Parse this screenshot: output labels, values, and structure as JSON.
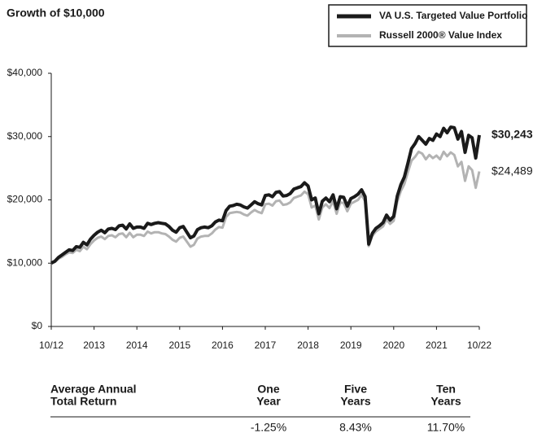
{
  "chart_data": {
    "type": "line",
    "title": "Growth of $10,000",
    "categories": [
      "10/12",
      null,
      null,
      null,
      null,
      null,
      null,
      null,
      null,
      null,
      null,
      null,
      "2013",
      null,
      null,
      null,
      null,
      null,
      null,
      null,
      null,
      null,
      null,
      null,
      "2014",
      null,
      null,
      null,
      null,
      null,
      null,
      null,
      null,
      null,
      null,
      null,
      "2015",
      null,
      null,
      null,
      null,
      null,
      null,
      null,
      null,
      null,
      null,
      null,
      "2016",
      null,
      null,
      null,
      null,
      null,
      null,
      null,
      null,
      null,
      null,
      null,
      "2017",
      null,
      null,
      null,
      null,
      null,
      null,
      null,
      null,
      null,
      null,
      null,
      "2018",
      null,
      null,
      null,
      null,
      null,
      null,
      null,
      null,
      null,
      null,
      null,
      "2019",
      null,
      null,
      null,
      null,
      null,
      null,
      null,
      null,
      null,
      null,
      null,
      "2020",
      null,
      null,
      null,
      null,
      null,
      null,
      null,
      null,
      null,
      null,
      null,
      "2021",
      null,
      null,
      null,
      null,
      null,
      null,
      null,
      null,
      null,
      null,
      null,
      "10/22"
    ],
    "series": [
      {
        "name": "VA U.S. Targeted Value Portfolio",
        "color": "#1a1a1a",
        "values": [
          10000,
          10300,
          10900,
          11300,
          11700,
          12100,
          12000,
          12600,
          12500,
          13300,
          12900,
          13800,
          14400,
          14900,
          15200,
          14800,
          15400,
          15500,
          15300,
          15900,
          16000,
          15400,
          16200,
          15500,
          15700,
          15700,
          15500,
          16300,
          16100,
          16300,
          16400,
          16300,
          16200,
          15800,
          15200,
          14900,
          15600,
          15800,
          14900,
          14000,
          14300,
          15300,
          15600,
          15700,
          15600,
          15900,
          16500,
          16800,
          16700,
          18300,
          19000,
          19100,
          19300,
          19200,
          18900,
          18700,
          19200,
          19700,
          19400,
          19200,
          20700,
          20800,
          20500,
          21200,
          21300,
          20600,
          20700,
          21000,
          21700,
          21900,
          22100,
          22700,
          22200,
          20000,
          20300,
          17800,
          19800,
          20300,
          19700,
          20800,
          18600,
          20500,
          20400,
          19000,
          20200,
          20500,
          20900,
          21600,
          20500,
          13000,
          14700,
          15500,
          15900,
          16400,
          17600,
          16800,
          17400,
          20600,
          22400,
          23600,
          25800,
          28100,
          28900,
          30000,
          29400,
          28800,
          29700,
          29400,
          30400,
          30000,
          31300,
          30600,
          31500,
          31400,
          29600,
          30800,
          27500,
          30200,
          29800,
          26600,
          30243
        ]
      },
      {
        "name": "Russell 2000® Value Index",
        "color": "#b3b3b3",
        "values": [
          10000,
          10200,
          10700,
          11000,
          11400,
          11700,
          11600,
          12100,
          11900,
          12600,
          12200,
          13000,
          13600,
          14000,
          14200,
          13800,
          14300,
          14400,
          14100,
          14600,
          14700,
          14100,
          14800,
          14100,
          14500,
          14500,
          14300,
          15000,
          14700,
          14900,
          14900,
          14700,
          14600,
          14200,
          13700,
          13400,
          14000,
          14200,
          13400,
          12600,
          12900,
          13900,
          14200,
          14300,
          14300,
          14700,
          15300,
          15700,
          15600,
          17300,
          17900,
          18000,
          18100,
          18000,
          17700,
          17500,
          18000,
          18400,
          18100,
          17900,
          19300,
          19400,
          19100,
          19800,
          19900,
          19200,
          19300,
          19600,
          20300,
          20500,
          20700,
          21300,
          20900,
          18800,
          19100,
          16900,
          18800,
          19300,
          18700,
          19800,
          17800,
          19600,
          19500,
          18200,
          19400,
          19700,
          20000,
          20800,
          19800,
          12700,
          14300,
          15000,
          15400,
          15800,
          16900,
          16200,
          16700,
          19700,
          21400,
          22500,
          24400,
          26200,
          26800,
          27600,
          27300,
          26400,
          27100,
          26600,
          27000,
          26400,
          27600,
          26900,
          27500,
          27100,
          25300,
          26000,
          23000,
          25300,
          24700,
          21900,
          24489
        ]
      }
    ],
    "annotations": [
      "$30,243",
      "$24,489"
    ],
    "ylim": [
      0,
      40000
    ],
    "yticks": [
      {
        "value": 0,
        "label": "$0"
      },
      {
        "value": 10000,
        "label": "$10,000"
      },
      {
        "value": 20000,
        "label": "$20,000"
      },
      {
        "value": 30000,
        "label": "$30,000"
      },
      {
        "value": 40000,
        "label": "$40,000"
      }
    ],
    "grid": false,
    "legend": "top-right"
  },
  "table": {
    "row_header": [
      "Average Annual",
      "Total Return"
    ],
    "columns": [
      [
        "One",
        "Year"
      ],
      [
        "Five",
        "Years"
      ],
      [
        "Ten",
        "Years"
      ]
    ],
    "values": [
      "-1.25%",
      "8.43%",
      "11.70%"
    ]
  }
}
